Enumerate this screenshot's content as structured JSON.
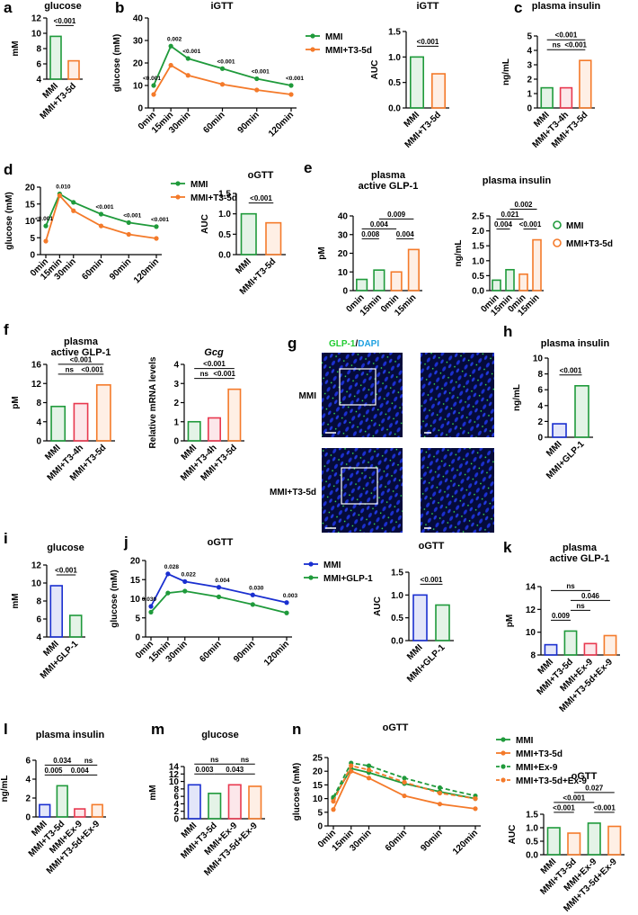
{
  "chart_data": [
    {
      "panel": "a",
      "type": "bar",
      "title": [
        "glucose"
      ],
      "ylabel": "mM",
      "categories": [
        "MMI",
        "MMI+T3-5d"
      ],
      "values": [
        9.6,
        6.4
      ],
      "colors": [
        "#1f9a3b",
        "#f47a2a"
      ],
      "ylim": [
        4,
        12
      ],
      "yticks": [
        4,
        6,
        8,
        10,
        12
      ],
      "annotations": [
        "<0.001"
      ]
    },
    {
      "panel": "b",
      "type": "line",
      "title": [
        "iGTT"
      ],
      "ylabel": "glucose (mM)",
      "x": [
        0,
        15,
        30,
        60,
        90,
        120
      ],
      "xlim": [
        0,
        120
      ],
      "xticks": [
        {
          "value": 0,
          "label": "0min"
        },
        {
          "value": 15,
          "label": "15min"
        },
        {
          "value": 30,
          "label": "30min"
        },
        {
          "value": 60,
          "label": "60min"
        },
        {
          "value": 90,
          "label": "90min"
        },
        {
          "value": 120,
          "label": "120min"
        }
      ],
      "ylim": [
        0,
        40
      ],
      "yticks": [
        0,
        10,
        20,
        30,
        40
      ],
      "series": [
        {
          "name": "MMI",
          "color": "#1f9a3b",
          "values": [
            10,
            27.5,
            22,
            17.5,
            13,
            10
          ]
        },
        {
          "name": "MMI+T3-5d",
          "color": "#f47a2a",
          "values": [
            6,
            19,
            14.5,
            10.5,
            8,
            6
          ]
        }
      ],
      "point_labels": [
        "<0.001",
        "0.002",
        "<0.001",
        "<0.001",
        "<0.001",
        "<0.001"
      ]
    },
    {
      "type": "bar",
      "title": [
        "iGTT"
      ],
      "ylabel": "AUC",
      "categories": [
        "MMI",
        "MMI+T3-5d"
      ],
      "values": [
        1.0,
        0.67
      ],
      "colors": [
        "#1f9a3b",
        "#f47a2a"
      ],
      "ylim": [
        0,
        1.5
      ],
      "yticks": [
        {
          "value": 0,
          "label": "0.0"
        },
        {
          "value": 0.5,
          "label": "0.5"
        },
        {
          "value": 1,
          "label": "1.0"
        },
        {
          "value": 1.5,
          "label": "1.5"
        }
      ],
      "annotations": [
        "<0.001"
      ]
    },
    {
      "panel": "c",
      "type": "bar",
      "title": [
        "plasma insulin"
      ],
      "ylabel": "ng/mL",
      "categories": [
        "MMI",
        "MMI+T3-4h",
        "MMI+T3-5d"
      ],
      "values": [
        1.4,
        1.4,
        3.3
      ],
      "colors": [
        "#1f9a3b",
        "#e8384f",
        "#f47a2a"
      ],
      "ylim": [
        0,
        5
      ],
      "yticks": [
        0,
        1,
        2,
        3,
        4,
        5
      ],
      "annotations": [
        "<0.001",
        "ns",
        "<0.001"
      ]
    },
    {
      "panel": "d",
      "type": "line",
      "ylabel": "glucose (mM)",
      "x": [
        0,
        15,
        30,
        60,
        90,
        120
      ],
      "xlim": [
        0,
        120
      ],
      "xticks": [
        {
          "value": 0,
          "label": "0min"
        },
        {
          "value": 15,
          "label": "15min"
        },
        {
          "value": 30,
          "label": "30min"
        },
        {
          "value": 60,
          "label": "60min"
        },
        {
          "value": 90,
          "label": "90min"
        },
        {
          "value": 120,
          "label": "120min"
        }
      ],
      "ylim": [
        0,
        20
      ],
      "yticks": [
        0,
        5,
        10,
        15,
        20
      ],
      "series": [
        {
          "name": "MMI",
          "color": "#1f9a3b",
          "values": [
            8.5,
            18,
            15.5,
            12,
            9.5,
            8.3
          ]
        },
        {
          "name": "MMI+T3-5d",
          "color": "#f47a2a",
          "values": [
            4,
            17.5,
            13,
            8.5,
            6,
            4.8
          ]
        }
      ],
      "point_labels": [
        "<0.001",
        "0.010",
        null,
        "<0.001",
        "<0.001",
        "<0.001"
      ]
    },
    {
      "type": "bar",
      "title": [
        "oGTT"
      ],
      "ylabel": "AUC",
      "categories": [
        "MMI",
        "MMI+T3-5d"
      ],
      "values": [
        1.0,
        0.78
      ],
      "colors": [
        "#1f9a3b",
        "#f47a2a"
      ],
      "ylim": [
        0,
        1.5
      ],
      "yticks": [
        {
          "value": 0,
          "label": "0.0"
        },
        {
          "value": 0.5,
          "label": "0.5"
        },
        {
          "value": 1,
          "label": "1.0"
        },
        {
          "value": 1.5,
          "label": "1.5"
        }
      ],
      "annotations": [
        "<0.001"
      ]
    },
    {
      "panel": "e",
      "type": "bar",
      "title": [
        "plasma",
        "active GLP-1"
      ],
      "ylabel": "pM",
      "categories": [
        "0min",
        "15min",
        "0min",
        "15min"
      ],
      "values": [
        6,
        11,
        10,
        22
      ],
      "colors": [
        "#1f9a3b",
        "#1f9a3b",
        "#f47a2a",
        "#f47a2a"
      ],
      "ylim": [
        0,
        40
      ],
      "yticks": [
        0,
        10,
        20,
        30,
        40
      ],
      "annotations": [
        "0.009",
        "0.004",
        "0.008",
        "0.004"
      ]
    },
    {
      "type": "bar",
      "title": [
        "plasma insulin"
      ],
      "ylabel": "ng/mL",
      "categories": [
        "0min",
        "15min",
        "0min",
        "15min"
      ],
      "values": [
        0.35,
        0.7,
        0.55,
        1.7
      ],
      "colors": [
        "#1f9a3b",
        "#1f9a3b",
        "#f47a2a",
        "#f47a2a"
      ],
      "ylim": [
        0,
        2.5
      ],
      "yticks": [
        {
          "value": 0,
          "label": "0.0"
        },
        0.5,
        {
          "value": 1,
          "label": "1.0"
        },
        1.5,
        {
          "value": 2,
          "label": "2.0"
        },
        2.5
      ],
      "annotations": [
        "0.002",
        "0.021",
        "0.004",
        "<0.001"
      ],
      "legend": [
        {
          "name": "MMI",
          "color": "#1f9a3b"
        },
        {
          "name": "MMI+T3-5d",
          "color": "#f47a2a"
        }
      ]
    },
    {
      "panel": "f",
      "type": "bar",
      "title": [
        "plasma",
        "active GLP-1"
      ],
      "ylabel": "pM",
      "categories": [
        "MMI",
        "MMI+T3-4h",
        "MMI+T3-5d"
      ],
      "values": [
        7.2,
        7.8,
        11.7
      ],
      "colors": [
        "#1f9a3b",
        "#e8384f",
        "#f47a2a"
      ],
      "ylim": [
        0,
        16
      ],
      "yticks": [
        0,
        4,
        8,
        12,
        16
      ],
      "annotations": [
        "<0.001",
        "ns",
        "<0.001"
      ]
    },
    {
      "type": "bar",
      "title": [
        "Gcg"
      ],
      "title_italic": true,
      "ylabel": "Relative mRNA levels",
      "categories": [
        "MMI",
        "MMI+T3-4h",
        "MMI+T3-5d"
      ],
      "values": [
        1.0,
        1.2,
        2.7
      ],
      "colors": [
        "#1f9a3b",
        "#e8384f",
        "#f47a2a"
      ],
      "ylim": [
        0,
        4
      ],
      "yticks": [
        0,
        1,
        2,
        3,
        4
      ],
      "annotations": [
        "<0.001",
        "ns",
        "<0.001"
      ]
    },
    {
      "panel": "h",
      "type": "bar",
      "title": [
        "plasma insulin"
      ],
      "ylabel": "ng/mL",
      "categories": [
        "MMI",
        "MMI+GLP-1"
      ],
      "values": [
        1.7,
        6.5
      ],
      "colors": [
        "#1a2fd0",
        "#1f9a3b"
      ],
      "ylim": [
        0,
        10
      ],
      "yticks": [
        0,
        2,
        4,
        6,
        8,
        10
      ],
      "annotations": [
        "<0.001"
      ]
    },
    {
      "panel": "i",
      "type": "bar",
      "title": [
        "glucose"
      ],
      "ylabel": "mM",
      "categories": [
        "MMI",
        "MMI+GLP-1"
      ],
      "values": [
        9.7,
        6.4
      ],
      "colors": [
        "#1a2fd0",
        "#1f9a3b"
      ],
      "ylim": [
        4,
        12
      ],
      "yticks": [
        4,
        6,
        8,
        10,
        12
      ],
      "annotations": [
        "<0.001"
      ]
    },
    {
      "panel": "j",
      "type": "line",
      "title": [
        "oGTT"
      ],
      "ylabel": "glucose (mM)",
      "x": [
        0,
        15,
        30,
        60,
        90,
        120
      ],
      "xlim": [
        0,
        120
      ],
      "xticks": [
        {
          "value": 0,
          "label": "0min"
        },
        {
          "value": 15,
          "label": "15min"
        },
        {
          "value": 30,
          "label": "30min"
        },
        {
          "value": 60,
          "label": "60min"
        },
        {
          "value": 90,
          "label": "90min"
        },
        {
          "value": 120,
          "label": "120min"
        }
      ],
      "ylim": [
        0,
        20
      ],
      "yticks": [
        0,
        5,
        10,
        15,
        20
      ],
      "series": [
        {
          "name": "MMI",
          "color": "#1a2fd0",
          "values": [
            8,
            16.5,
            14.5,
            13,
            11,
            9
          ]
        },
        {
          "name": "MMI+GLP-1",
          "color": "#1f9a3b",
          "values": [
            6.5,
            11.5,
            12,
            10.5,
            8.5,
            6.3
          ]
        }
      ],
      "point_labels": [
        "0.030",
        "0.028",
        "0.022",
        "0.004",
        "0.030",
        "0.003"
      ]
    },
    {
      "type": "bar",
      "title": [
        "oGTT"
      ],
      "ylabel": "AUC",
      "categories": [
        "MMI",
        "MMI+GLP-1"
      ],
      "values": [
        1.0,
        0.78
      ],
      "colors": [
        "#1a2fd0",
        "#1f9a3b"
      ],
      "ylim": [
        0,
        1.5
      ],
      "yticks": [
        {
          "value": 0,
          "label": "0.0"
        },
        {
          "value": 0.5,
          "label": "0.5"
        },
        {
          "value": 1,
          "label": "1.0"
        },
        {
          "value": 1.5,
          "label": "1.5"
        }
      ],
      "annotations": [
        "<0.001"
      ]
    },
    {
      "panel": "k",
      "type": "bar",
      "title": [
        "plasma",
        "active GLP-1"
      ],
      "ylabel": "pM",
      "categories": [
        "MMI",
        "MMI+T3-5d",
        "MMI+Ex-9",
        "MMI+T3-5d+Ex-9"
      ],
      "values": [
        8.9,
        10.1,
        9.0,
        9.7
      ],
      "colors": [
        "#1a2fd0",
        "#1f9a3b",
        "#e8384f",
        "#f47a2a"
      ],
      "ylim": [
        8,
        14
      ],
      "yticks": [
        8,
        10,
        12,
        14
      ],
      "annotations": [
        "0.009",
        "ns",
        "0.046",
        "ns"
      ]
    },
    {
      "panel": "l",
      "type": "bar",
      "title": [
        "plasma insulin"
      ],
      "ylabel": "ng/mL",
      "categories": [
        "MMI",
        "MMI+T3-5d",
        "MMI+Ex-9",
        "MMI+T3-5d+Ex-9"
      ],
      "values": [
        1.3,
        3.3,
        0.85,
        1.3
      ],
      "colors": [
        "#1a2fd0",
        "#1f9a3b",
        "#e8384f",
        "#f47a2a"
      ],
      "ylim": [
        0,
        6
      ],
      "yticks": [
        0,
        2,
        4,
        6
      ],
      "annotations": [
        "0.034",
        "ns",
        "0.005",
        "0.004"
      ]
    },
    {
      "panel": "m",
      "type": "bar",
      "title": [
        "glucose"
      ],
      "ylabel": "mM",
      "categories": [
        "MMI",
        "MMI+T3-5d",
        "MMI+Ex-9",
        "MMI+T3-5d+Ex-9"
      ],
      "values": [
        9.1,
        6.8,
        9.1,
        8.7
      ],
      "colors": [
        "#1a2fd0",
        "#1f9a3b",
        "#e8384f",
        "#f47a2a"
      ],
      "ylim": [
        0,
        14
      ],
      "yticks": [
        0,
        2,
        4,
        6,
        8,
        10,
        12,
        14
      ],
      "annotations": [
        "ns",
        "ns",
        "0.003",
        "0.043"
      ]
    },
    {
      "panel": "n",
      "type": "line",
      "title": [
        "oGTT"
      ],
      "ylabel": "glucose (mM)",
      "x": [
        0,
        15,
        30,
        60,
        90,
        120
      ],
      "xlim": [
        0,
        120
      ],
      "xticks": [
        {
          "value": 0,
          "label": "0min"
        },
        {
          "value": 15,
          "label": "15min"
        },
        {
          "value": 30,
          "label": "30min"
        },
        {
          "value": 60,
          "label": "60min"
        },
        {
          "value": 90,
          "label": "90min"
        },
        {
          "value": 120,
          "label": "120min"
        }
      ],
      "ylim": [
        0,
        25
      ],
      "yticks": [
        0,
        5,
        10,
        15,
        20,
        25
      ],
      "series": [
        {
          "name": "MMI",
          "color": "#1f9a3b",
          "values": [
            10,
            21,
            19.5,
            15.5,
            12.5,
            10
          ]
        },
        {
          "name": "MMI+T3-5d",
          "color": "#f47a2a",
          "values": [
            6,
            20,
            17.5,
            11,
            8,
            6.3
          ]
        },
        {
          "name": "MMI+Ex-9",
          "color": "#1f9a3b",
          "dashed": true,
          "values": [
            10.5,
            23,
            22,
            17.5,
            14,
            11
          ]
        },
        {
          "name": "MMI+T3-5d+Ex-9",
          "color": "#f47a2a",
          "dashed": true,
          "values": [
            9,
            22,
            20.5,
            16,
            12,
            10
          ]
        }
      ]
    },
    {
      "type": "bar",
      "title": [
        "oGTT"
      ],
      "ylabel": "AUC",
      "categories": [
        "MMI",
        "MMI+T3-5d",
        "MMI+Ex-9",
        "MMI+T3-5d+Ex-9"
      ],
      "values": [
        1.0,
        0.8,
        1.17,
        1.05
      ],
      "colors": [
        "#1f9a3b",
        "#f47a2a",
        "#1f9a3b",
        "#f47a2a"
      ],
      "ylim": [
        0,
        1.5
      ],
      "yticks": [
        {
          "value": 0,
          "label": "0.0"
        },
        {
          "value": 0.5,
          "label": "0.5"
        },
        {
          "value": 1,
          "label": "1.0"
        },
        {
          "value": 1.5,
          "label": "1.5"
        }
      ],
      "annotations": [
        "<0.001",
        "0.027",
        "<0.001",
        "<0.001"
      ]
    }
  ],
  "image_panel": {
    "panel": "g",
    "stain_a": "GLP-1",
    "separator": "/",
    "stain_b": "DAPI",
    "rows": [
      "MMI",
      "MMI+T3-5d"
    ]
  }
}
